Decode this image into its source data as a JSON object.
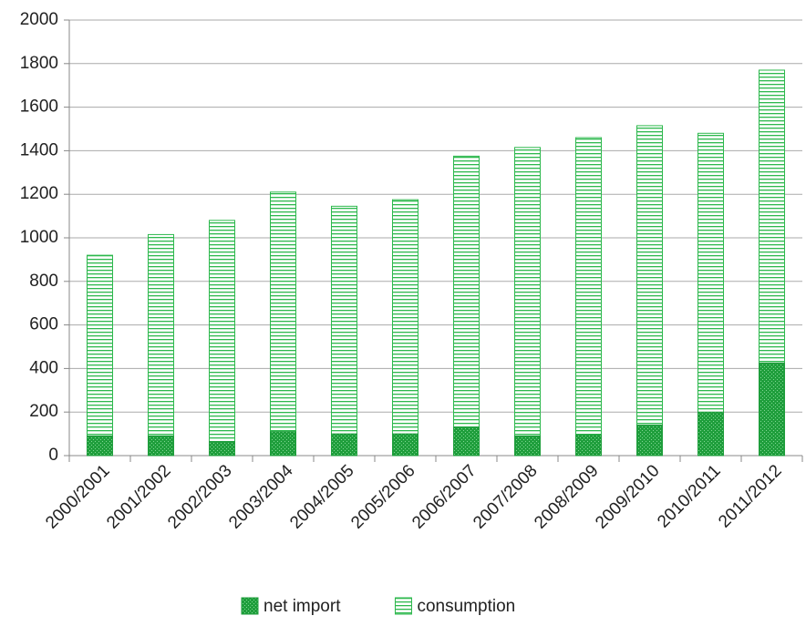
{
  "chart_data": {
    "type": "bar",
    "overlap": true,
    "categories": [
      "2000/2001",
      "2001/2002",
      "2002/2003",
      "2003/2004",
      "2004/2005",
      "2005/2006",
      "2006/2007",
      "2007/2008",
      "2008/2009",
      "2009/2010",
      "2010/2011",
      "2011/2012"
    ],
    "series": [
      {
        "name": "net import",
        "color": "#1f9e3c",
        "pattern": "dots",
        "values": [
          90,
          90,
          65,
          110,
          100,
          100,
          130,
          90,
          95,
          140,
          200,
          425
        ]
      },
      {
        "name": "consumption",
        "color": "#2db84d",
        "pattern": "hlines",
        "values": [
          920,
          1015,
          1080,
          1210,
          1145,
          1175,
          1375,
          1415,
          1460,
          1515,
          1480,
          1770
        ]
      }
    ],
    "ylim": [
      0,
      2000
    ],
    "yticks": [
      0,
      200,
      400,
      600,
      800,
      1000,
      1200,
      1400,
      1600,
      1800,
      2000
    ],
    "grid": true,
    "legend": "bottom"
  }
}
